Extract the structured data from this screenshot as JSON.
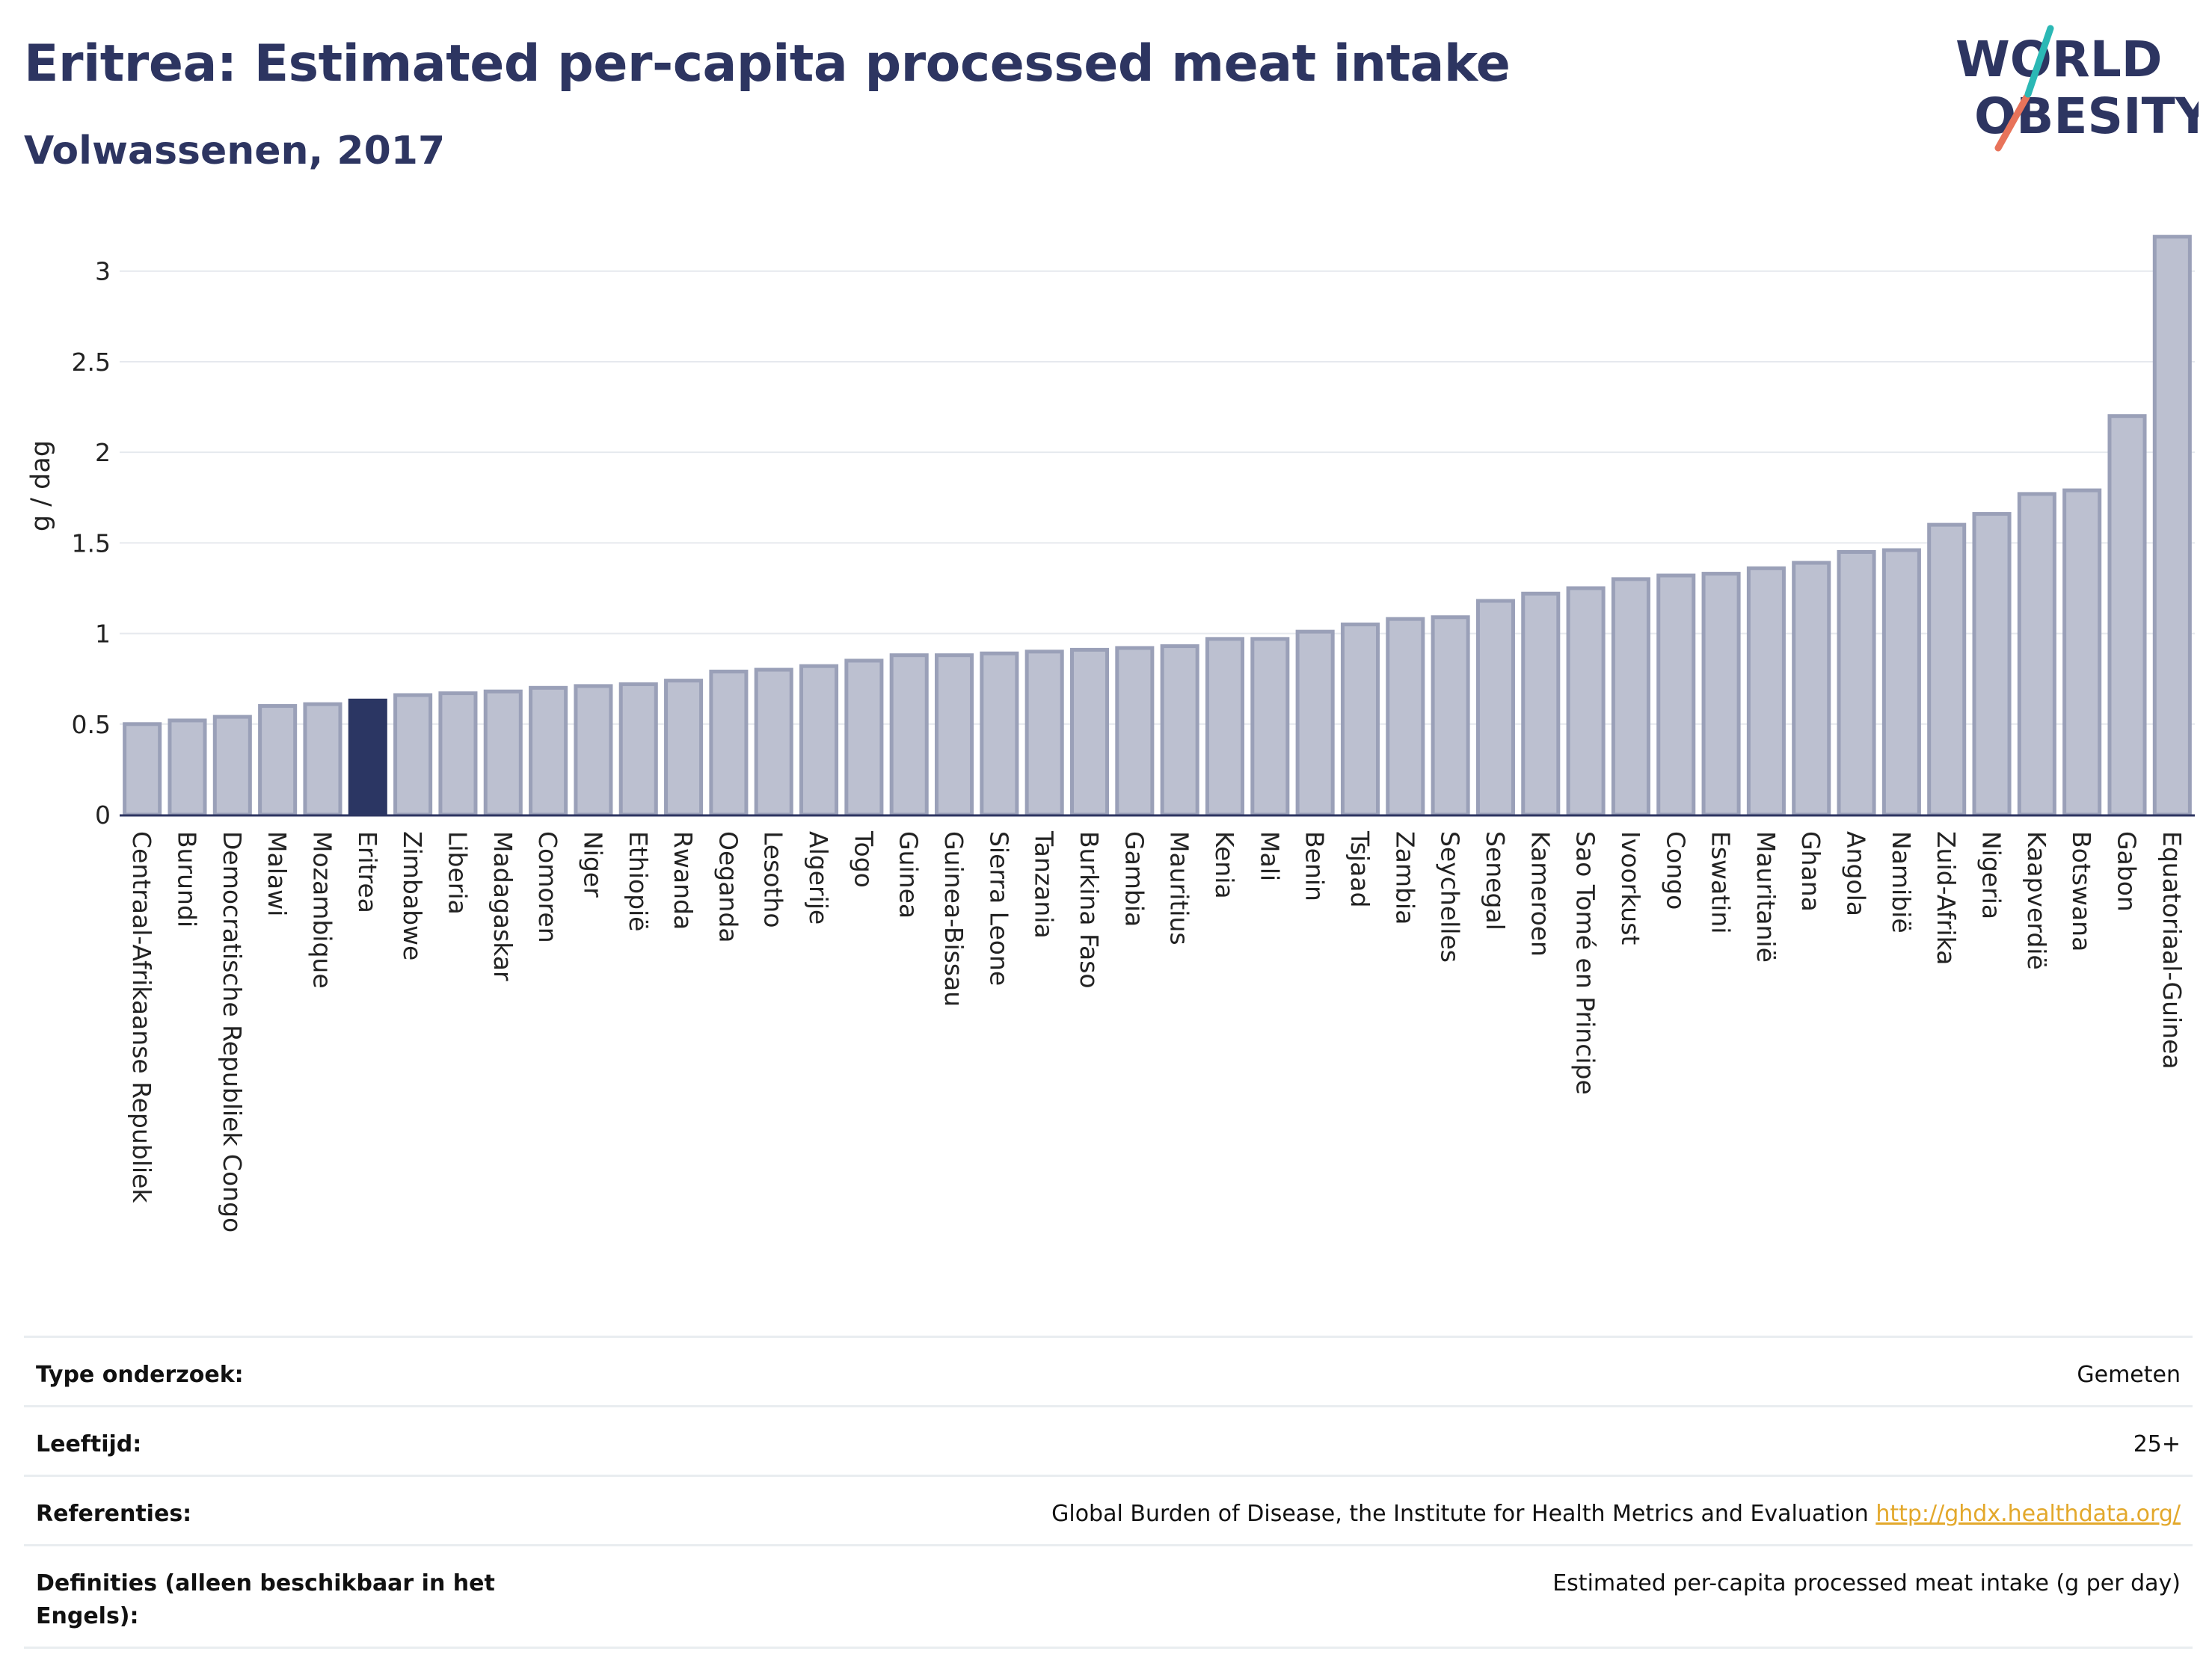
{
  "header": {
    "title": "Eritrea: Estimated per-capita processed meat intake",
    "subtitle": "Volwassenen, 2017",
    "logo_line1": "WORLD",
    "logo_line2": "OBESITY"
  },
  "colors": {
    "bar": "#bcc0d0",
    "bar_stroke": "#9aa0b8",
    "highlight": "#2b3663",
    "title": "#2d3561",
    "link": "#e3a82b",
    "logo_teal": "#2bb8b5",
    "logo_coral": "#e8735a"
  },
  "chart_data": {
    "type": "bar",
    "title": "Eritrea: Estimated per-capita processed meat intake",
    "subtitle": "Volwassenen, 2017",
    "xlabel": "",
    "ylabel": "g / dag",
    "ylim": [
      0,
      3.3
    ],
    "yticks": [
      0,
      0.5,
      1,
      1.5,
      2,
      2.5,
      3
    ],
    "ytick_labels": [
      "0",
      "0.5",
      "1",
      "1.5",
      "2",
      "2.5",
      "3"
    ],
    "grid": true,
    "highlight": "Eritrea",
    "categories": [
      "Centraal-Afrikaanse Republiek",
      "Burundi",
      "Democratische Republiek Congo",
      "Malawi",
      "Mozambique",
      "Eritrea",
      "Zimbabwe",
      "Liberia",
      "Madagaskar",
      "Comoren",
      "Niger",
      "Ethiopië",
      "Rwanda",
      "Oeganda",
      "Lesotho",
      "Algerije",
      "Togo",
      "Guinea",
      "Guinea-Bissau",
      "Sierra Leone",
      "Tanzania",
      "Burkina Faso",
      "Gambia",
      "Mauritius",
      "Kenia",
      "Mali",
      "Benin",
      "Tsjaad",
      "Zambia",
      "Seychelles",
      "Senegal",
      "Kameroen",
      "Sao Tomé en Principe",
      "Ivoorkust",
      "Congo",
      "Eswatini",
      "Mauritanië",
      "Ghana",
      "Angola",
      "Namibië",
      "Zuid-Afrika",
      "Nigeria",
      "Kaapverdië",
      "Botswana",
      "Gabon",
      "Equatoriaal-Guinea"
    ],
    "values": [
      0.5,
      0.52,
      0.54,
      0.6,
      0.61,
      0.63,
      0.66,
      0.67,
      0.68,
      0.7,
      0.71,
      0.72,
      0.74,
      0.79,
      0.8,
      0.82,
      0.85,
      0.88,
      0.88,
      0.89,
      0.9,
      0.91,
      0.92,
      0.93,
      0.97,
      0.97,
      1.01,
      1.05,
      1.08,
      1.09,
      1.18,
      1.22,
      1.25,
      1.3,
      1.32,
      1.33,
      1.36,
      1.39,
      1.45,
      1.46,
      1.6,
      1.66,
      1.77,
      1.79,
      2.2,
      3.19
    ]
  },
  "info": {
    "rows": [
      {
        "label": "Type onderzoek:",
        "value": "Gemeten"
      },
      {
        "label": "Leeftijd:",
        "value": "25+"
      },
      {
        "label": "Referenties:",
        "value": "Global Burden of Disease, the Institute for Health Metrics and Evaluation",
        "link": "http://ghdx.healthdata.org/"
      },
      {
        "label": "Definities (alleen beschikbaar in het Engels):",
        "value": "Estimated per-capita processed meat intake (g per day)"
      }
    ]
  }
}
